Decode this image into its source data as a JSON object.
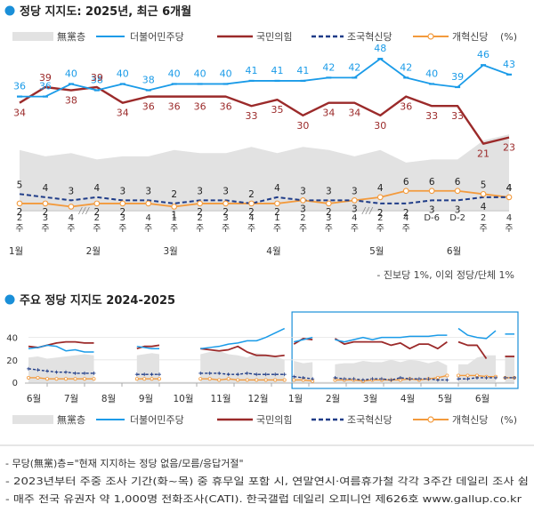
{
  "colors": {
    "accent": "#1a8fd8",
    "minjoo": "#1a9be8",
    "ppp": "#9b2a2a",
    "rebuild": "#1f3c88",
    "reform": "#f39a3c",
    "none_area": "#e2e2e2"
  },
  "chart1": {
    "title": "정당 지지도: 2025년, 최근 6개월",
    "legend": {
      "none": "無黨층",
      "minjoo": "더불어민주당",
      "ppp": "국민의힘",
      "rebuild": "조국혁신당",
      "reform": "개혁신당",
      "unit": "(%)"
    },
    "footnote": "- 진보당 1%, 이외 정당/단체 1%"
  },
  "chart2": {
    "title": "주요 정당 지지도 2024-2025",
    "yticks": [
      "40",
      "20",
      "0"
    ],
    "months": [
      "6월",
      "7월",
      "8월",
      "9월",
      "10월",
      "11월",
      "12월",
      "1월",
      "2월",
      "3월",
      "4월",
      "5월",
      "6월"
    ],
    "legend": {
      "none": "無黨층",
      "minjoo": "더불어민주당",
      "ppp": "국민의힘",
      "rebuild": "조국혁신당",
      "reform": "개혁신당",
      "unit": "(%)"
    }
  },
  "notes": [
    "- 무당(無黨)층=\"현재 지지하는 정당 없음/모름/응답거절\"",
    "- 2023년부터 주중 조사 기간(화~목) 중 휴무일 포함 시, 연말연시·여름휴가철 각각 3주간 데일리 조사 쉼",
    "- 매주 전국 유권자 약 1,000명 전화조사(CATI). 한국갤럽 데일리 오피니언 제626호 www.gallup.co.kr"
  ],
  "chart_data": [
    {
      "type": "line",
      "title": "정당 지지도: 2025년, 최근 6개월",
      "categories": [
        "1월 2주",
        "1월 3주",
        "1월 4주",
        "2월 2주",
        "2월 3주",
        "2월 4주",
        "3월 1주",
        "3월 2주",
        "3월 3주",
        "3월 4주",
        "4월 1주",
        "4월 2주",
        "4월 3주",
        "4월 4주",
        "5월 2주",
        "5월 4주",
        "D-6",
        "D-2",
        "6월 2주",
        "6월 4주"
      ],
      "week_labels": [
        "2",
        "3",
        "4",
        "2",
        "3",
        "4",
        "1",
        "2",
        "3",
        "4",
        "1",
        "2",
        "3",
        "4",
        "2",
        "4",
        "D-6",
        "D-2",
        "2",
        "4"
      ],
      "month_labels": [
        {
          "label": "1월",
          "index": 0
        },
        {
          "label": "2월",
          "index": 3
        },
        {
          "label": "3월",
          "index": 6
        },
        {
          "label": "4월",
          "index": 10
        },
        {
          "label": "5월",
          "index": 14
        },
        {
          "label": "6월",
          "index": 17
        }
      ],
      "series": [
        {
          "name": "더불어민주당",
          "key": "minjoo",
          "values": [
            36,
            36,
            40,
            38,
            40,
            38,
            40,
            40,
            40,
            41,
            41,
            41,
            42,
            42,
            48,
            42,
            40,
            39,
            46,
            43
          ]
        },
        {
          "name": "국민의힘",
          "key": "ppp",
          "values": [
            34,
            39,
            38,
            39,
            34,
            36,
            36,
            36,
            36,
            33,
            35,
            30,
            34,
            34,
            30,
            36,
            33,
            33,
            21,
            23
          ]
        },
        {
          "name": "조국혁신당",
          "key": "rebuild",
          "values": [
            5,
            4,
            3,
            4,
            3,
            3,
            2,
            3,
            3,
            2,
            4,
            3,
            3,
            3,
            2,
            2,
            3,
            3,
            4,
            4
          ]
        },
        {
          "name": "개혁신당",
          "key": "reform",
          "values": [
            2,
            2,
            1,
            2,
            2,
            2,
            1,
            2,
            2,
            2,
            2,
            3,
            2,
            3,
            4,
            6,
            6,
            6,
            5,
            4
          ]
        },
        {
          "name": "無黨층",
          "key": "none",
          "values": [
            19,
            17,
            18,
            16,
            17,
            17,
            19,
            18,
            18,
            20,
            18,
            20,
            19,
            17,
            19,
            15,
            16,
            16,
            22,
            24
          ]
        }
      ],
      "labeled": {
        "minjoo": [
          36,
          36,
          40,
          38,
          40,
          38,
          40,
          40,
          40,
          41,
          41,
          41,
          42,
          42,
          48,
          42,
          40,
          39,
          46,
          43
        ],
        "ppp": [
          34,
          39,
          38,
          39,
          34,
          36,
          36,
          36,
          36,
          33,
          35,
          30,
          34,
          34,
          30,
          36,
          33,
          33,
          21,
          23
        ],
        "rebuild": [
          5,
          4,
          3,
          4,
          3,
          3,
          2,
          3,
          3,
          2,
          4,
          3,
          3,
          3,
          null,
          null,
          null,
          null,
          null,
          4
        ],
        "reform": [
          2,
          2,
          null,
          2,
          2,
          null,
          1,
          2,
          2,
          2,
          2,
          3,
          2,
          3,
          4,
          6,
          6,
          6,
          5,
          4
        ],
        "rebuild_below": [
          null,
          null,
          null,
          null,
          null,
          null,
          null,
          null,
          null,
          null,
          null,
          null,
          null,
          null,
          2,
          2,
          3,
          3,
          4,
          null
        ]
      },
      "ylim": [
        0,
        52
      ],
      "unit": "%"
    },
    {
      "type": "line",
      "title": "주요 정당 지지도 2024-2025",
      "yticks": [
        0,
        20,
        40
      ],
      "ylim": [
        0,
        50
      ],
      "x_range": [
        0,
        13
      ],
      "series": [
        {
          "name": "더불어민주당",
          "key": "minjoo",
          "segments": [
            {
              "x": [
                0.0,
                0.25,
                0.5,
                0.75,
                1.0,
                1.25,
                1.5,
                1.75
              ],
              "y": [
                30,
                31,
                33,
                32,
                28,
                29,
                27,
                27
              ]
            },
            {
              "x": [
                2.9,
                3.1,
                3.3,
                3.5
              ],
              "y": [
                32,
                31,
                30,
                30
              ]
            },
            {
              "x": [
                4.6,
                4.85,
                5.1,
                5.35,
                5.6,
                5.85,
                6.1,
                6.35,
                6.6,
                6.85
              ],
              "y": [
                30,
                31,
                32,
                34,
                35,
                37,
                37,
                40,
                44,
                48
              ]
            },
            {
              "x": [
                7.1,
                7.35,
                7.6
              ],
              "y": [
                36,
                38,
                40
              ]
            },
            {
              "x": [
                8.2,
                8.45,
                8.7,
                8.95,
                9.2,
                9.45,
                9.7,
                9.95,
                10.2,
                10.45,
                10.7,
                10.95,
                11.2
              ],
              "y": [
                38,
                36,
                38,
                40,
                38,
                40,
                40,
                40,
                41,
                41,
                41,
                42,
                42
              ]
            },
            {
              "x": [
                11.5,
                11.75,
                12.0,
                12.25,
                12.5
              ],
              "y": [
                48,
                42,
                40,
                39,
                46
              ]
            },
            {
              "x": [
                12.75,
                13.0
              ],
              "y": [
                43,
                43
              ]
            }
          ]
        },
        {
          "name": "국민의힘",
          "key": "ppp",
          "segments": [
            {
              "x": [
                0.0,
                0.25,
                0.5,
                0.75,
                1.0,
                1.25,
                1.5,
                1.75
              ],
              "y": [
                32,
                31,
                33,
                35,
                36,
                36,
                35,
                35
              ]
            },
            {
              "x": [
                2.9,
                3.1,
                3.3,
                3.5
              ],
              "y": [
                30,
                32,
                32,
                33
              ]
            },
            {
              "x": [
                4.6,
                4.85,
                5.1,
                5.35,
                5.6,
                5.85,
                6.1,
                6.35,
                6.6,
                6.85
              ],
              "y": [
                30,
                29,
                28,
                29,
                32,
                27,
                24,
                24,
                23,
                24
              ]
            },
            {
              "x": [
                7.1,
                7.35,
                7.6
              ],
              "y": [
                34,
                39,
                38
              ]
            },
            {
              "x": [
                8.2,
                8.45,
                8.7,
                8.95,
                9.2,
                9.45,
                9.7,
                9.95,
                10.2,
                10.45,
                10.7,
                10.95,
                11.2
              ],
              "y": [
                39,
                34,
                36,
                36,
                36,
                36,
                33,
                35,
                30,
                34,
                34,
                30,
                36
              ]
            },
            {
              "x": [
                11.5,
                11.75,
                12.0,
                12.25
              ],
              "y": [
                36,
                33,
                33,
                21
              ]
            },
            {
              "x": [
                12.75,
                13.0
              ],
              "y": [
                23,
                23
              ]
            }
          ]
        },
        {
          "name": "조국혁신당",
          "key": "rebuild",
          "segments": [
            {
              "x": [
                0.0,
                0.25,
                0.5,
                0.75,
                1.0,
                1.25,
                1.5,
                1.75
              ],
              "y": [
                12,
                11,
                10,
                9,
                9,
                8,
                8,
                8
              ]
            },
            {
              "x": [
                2.9,
                3.1,
                3.3,
                3.5
              ],
              "y": [
                7,
                7,
                7,
                7
              ]
            },
            {
              "x": [
                4.6,
                4.85,
                5.1,
                5.35,
                5.6,
                5.85,
                6.1,
                6.35,
                6.6,
                6.85
              ],
              "y": [
                8,
                8,
                8,
                7,
                7,
                8,
                7,
                7,
                7,
                7
              ]
            },
            {
              "x": [
                7.1,
                7.35,
                7.6
              ],
              "y": [
                5,
                4,
                3
              ]
            },
            {
              "x": [
                8.2,
                8.45,
                8.7,
                8.95,
                9.2,
                9.45,
                9.7,
                9.95,
                10.2,
                10.45,
                10.7,
                10.95,
                11.2
              ],
              "y": [
                4,
                3,
                3,
                2,
                3,
                3,
                2,
                4,
                3,
                3,
                3,
                2,
                2
              ]
            },
            {
              "x": [
                11.5,
                11.75,
                12.0,
                12.25,
                12.5
              ],
              "y": [
                3,
                3,
                4,
                4,
                4
              ]
            },
            {
              "x": [
                12.75,
                13.0
              ],
              "y": [
                4,
                4
              ]
            }
          ]
        },
        {
          "name": "개혁신당",
          "key": "reform",
          "segments": [
            {
              "x": [
                0.0,
                0.25,
                0.5,
                0.75,
                1.0,
                1.25,
                1.5,
                1.75
              ],
              "y": [
                4,
                4,
                3,
                3,
                3,
                3,
                3,
                3
              ]
            },
            {
              "x": [
                2.9,
                3.1,
                3.3,
                3.5
              ],
              "y": [
                3,
                3,
                3,
                3
              ]
            },
            {
              "x": [
                4.6,
                4.85,
                5.1,
                5.35,
                5.6,
                5.85,
                6.1,
                6.35,
                6.6,
                6.85
              ],
              "y": [
                3,
                3,
                2,
                3,
                2,
                2,
                2,
                2,
                2,
                2
              ]
            },
            {
              "x": [
                7.1,
                7.35,
                7.6
              ],
              "y": [
                2,
                2,
                1
              ]
            },
            {
              "x": [
                8.2,
                8.45,
                8.7,
                8.95,
                9.2,
                9.45,
                9.7,
                9.95,
                10.2,
                10.45,
                10.7,
                10.95,
                11.2
              ],
              "y": [
                2,
                2,
                2,
                1,
                2,
                2,
                2,
                2,
                3,
                2,
                3,
                4,
                6
              ]
            },
            {
              "x": [
                11.5,
                11.75,
                12.0,
                12.25,
                12.5
              ],
              "y": [
                6,
                6,
                6,
                5,
                5
              ]
            },
            {
              "x": [
                12.75,
                13.0
              ],
              "y": [
                4,
                4
              ]
            }
          ]
        },
        {
          "name": "無黨층",
          "key": "none",
          "segments": [
            {
              "x": [
                0.0,
                0.25,
                0.5,
                0.75,
                1.0,
                1.25,
                1.5,
                1.75
              ],
              "y": [
                22,
                23,
                21,
                22,
                23,
                24,
                25,
                24
              ]
            },
            {
              "x": [
                2.9,
                3.1,
                3.3,
                3.5
              ],
              "y": [
                24,
                25,
                26,
                25
              ]
            },
            {
              "x": [
                4.6,
                4.85,
                5.1,
                5.35,
                5.6,
                5.85,
                6.1,
                6.35,
                6.6,
                6.85
              ],
              "y": [
                25,
                27,
                28,
                25,
                24,
                22,
                26,
                25,
                23,
                20
              ]
            },
            {
              "x": [
                7.1,
                7.35,
                7.6
              ],
              "y": [
                19,
                17,
                18
              ]
            },
            {
              "x": [
                8.2,
                8.45,
                8.7,
                8.95,
                9.2,
                9.45,
                9.7,
                9.95,
                10.2,
                10.45,
                10.7,
                10.95,
                11.2
              ],
              "y": [
                16,
                17,
                17,
                19,
                18,
                18,
                20,
                18,
                20,
                19,
                17,
                19,
                15
              ]
            },
            {
              "x": [
                11.5,
                11.75,
                12.0,
                12.25,
                12.5
              ],
              "y": [
                16,
                16,
                22,
                24,
                24
              ]
            },
            {
              "x": [
                12.75,
                13.0
              ],
              "y": [
                24,
                24
              ]
            }
          ]
        }
      ],
      "highlight_range": [
        7.05,
        13.2
      ]
    }
  ]
}
